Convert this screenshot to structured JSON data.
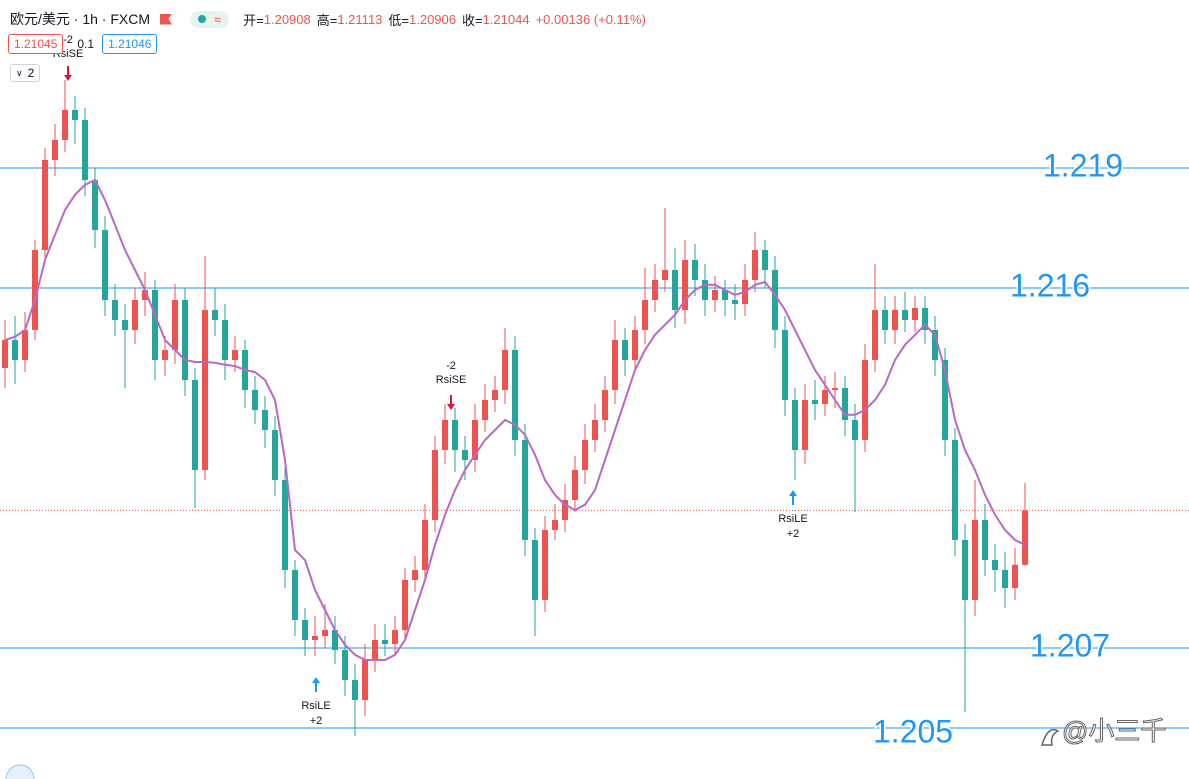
{
  "header": {
    "symbol": "欧元/美元 · 1h · FXCM",
    "toggle": "≈",
    "open_label": "开=",
    "open": "1.20908",
    "high_label": "高=",
    "high": "1.21113",
    "low_label": "低=",
    "low": "1.20906",
    "close_label": "收=",
    "close": "1.21044",
    "change": "+0.00136 (+0.11%)",
    "sell_price": "1.21045",
    "spread": "0.1",
    "buy_price": "1.21046",
    "indicator_count": "2"
  },
  "watermark": "@小三千",
  "chart_data": {
    "type": "candlestick",
    "ylim": [
      1.203725,
      1.2232
    ],
    "up_color": "#ef5350",
    "down_color": "#26a69a",
    "ohlc": [
      [
        1.214,
        1.2152,
        1.2135,
        1.2147
      ],
      [
        1.2147,
        1.2153,
        1.2136,
        1.2142
      ],
      [
        1.2142,
        1.2154,
        1.2139,
        1.21495
      ],
      [
        1.21495,
        1.2172,
        1.2147,
        1.21695
      ],
      [
        1.21695,
        1.2195,
        1.2166,
        1.2192
      ],
      [
        1.2192,
        1.2201,
        1.2188,
        1.2197
      ],
      [
        1.2197,
        1.2212,
        1.2194,
        1.22045
      ],
      [
        1.22045,
        1.2208,
        1.2196,
        1.2202
      ],
      [
        1.2202,
        1.2205,
        1.2183,
        1.2187
      ],
      [
        1.2187,
        1.219,
        1.217,
        1.21745
      ],
      [
        1.21745,
        1.2178,
        1.2153,
        1.2157
      ],
      [
        1.2157,
        1.2161,
        1.2148,
        1.2152
      ],
      [
        1.2152,
        1.2156,
        1.2135,
        1.21495
      ],
      [
        1.21495,
        1.216,
        1.2146,
        1.2157
      ],
      [
        1.2157,
        1.2164,
        1.2153,
        1.21595
      ],
      [
        1.21595,
        1.2162,
        1.2137,
        1.2142
      ],
      [
        1.2142,
        1.2148,
        1.2138,
        1.21445
      ],
      [
        1.21445,
        1.2161,
        1.2141,
        1.2157
      ],
      [
        1.2157,
        1.216,
        1.2133,
        1.2137
      ],
      [
        1.2137,
        1.214,
        1.2105,
        1.21145
      ],
      [
        1.21145,
        1.2168,
        1.2112,
        1.21545
      ],
      [
        1.21545,
        1.216,
        1.2148,
        1.2152
      ],
      [
        1.2152,
        1.2156,
        1.2137,
        1.2142
      ],
      [
        1.2142,
        1.2148,
        1.2139,
        1.21445
      ],
      [
        1.21445,
        1.2147,
        1.213,
        1.21345
      ],
      [
        1.21345,
        1.2138,
        1.2126,
        1.21295
      ],
      [
        1.21295,
        1.2133,
        1.212,
        1.21245
      ],
      [
        1.21245,
        1.2128,
        1.2108,
        1.2112
      ],
      [
        1.2112,
        1.2115,
        1.2085,
        1.20895
      ],
      [
        1.20895,
        1.2092,
        1.2073,
        1.2077
      ],
      [
        1.2077,
        1.208,
        1.2068,
        1.2072
      ],
      [
        1.2072,
        1.2078,
        1.2068,
        1.2073
      ],
      [
        1.2073,
        1.2081,
        1.207,
        1.20745
      ],
      [
        1.20745,
        1.2078,
        1.2066,
        1.20695
      ],
      [
        1.20695,
        1.2073,
        1.2058,
        1.2062
      ],
      [
        1.2062,
        1.2066,
        1.2048,
        1.2057
      ],
      [
        1.2057,
        1.2071,
        1.2053,
        1.2067
      ],
      [
        1.2067,
        1.2076,
        1.2064,
        1.2072
      ],
      [
        1.2072,
        1.2076,
        1.2068,
        1.2071
      ],
      [
        1.2071,
        1.2078,
        1.2068,
        1.20745
      ],
      [
        1.20745,
        1.209,
        1.2072,
        1.2087
      ],
      [
        1.2087,
        1.2093,
        1.2084,
        1.20895
      ],
      [
        1.20895,
        1.2106,
        1.2087,
        1.2102
      ],
      [
        1.2102,
        1.2123,
        1.2099,
        1.21195
      ],
      [
        1.21195,
        1.2131,
        1.2116,
        1.2127
      ],
      [
        1.2127,
        1.213,
        1.2114,
        1.21195
      ],
      [
        1.21195,
        1.2123,
        1.2112,
        1.2117
      ],
      [
        1.2117,
        1.2131,
        1.2114,
        1.2127
      ],
      [
        1.2127,
        1.2136,
        1.2124,
        1.2132
      ],
      [
        1.2132,
        1.2138,
        1.2129,
        1.21345
      ],
      [
        1.21345,
        1.215,
        1.2131,
        1.21445
      ],
      [
        1.21445,
        1.2148,
        1.2118,
        1.2122
      ],
      [
        1.2122,
        1.2126,
        1.2093,
        1.2097
      ],
      [
        1.2097,
        1.21,
        1.2073,
        1.2082
      ],
      [
        1.2082,
        1.2103,
        1.2079,
        1.20995
      ],
      [
        1.20995,
        1.2106,
        1.2097,
        1.2102
      ],
      [
        1.2102,
        1.2111,
        1.2099,
        1.2107
      ],
      [
        1.2107,
        1.2118,
        1.2104,
        1.21145
      ],
      [
        1.21145,
        1.2126,
        1.2111,
        1.2122
      ],
      [
        1.2122,
        1.2131,
        1.2119,
        1.2127
      ],
      [
        1.2127,
        1.2138,
        1.2124,
        1.21345
      ],
      [
        1.21345,
        1.2152,
        1.2131,
        1.2147
      ],
      [
        1.2147,
        1.215,
        1.2138,
        1.2142
      ],
      [
        1.2142,
        1.2153,
        1.2139,
        1.21495
      ],
      [
        1.21495,
        1.2165,
        1.2146,
        1.2157
      ],
      [
        1.2157,
        1.2166,
        1.2154,
        1.2162
      ],
      [
        1.2162,
        1.218,
        1.2159,
        1.21645
      ],
      [
        1.21645,
        1.217,
        1.215,
        1.21545
      ],
      [
        1.21545,
        1.2172,
        1.2151,
        1.2167
      ],
      [
        1.2167,
        1.2171,
        1.2158,
        1.2162
      ],
      [
        1.2162,
        1.2166,
        1.2153,
        1.2157
      ],
      [
        1.2157,
        1.2163,
        1.2154,
        1.21595
      ],
      [
        1.21595,
        1.2162,
        1.2153,
        1.2157
      ],
      [
        1.2157,
        1.2161,
        1.2152,
        1.2156
      ],
      [
        1.2156,
        1.2166,
        1.2153,
        1.2162
      ],
      [
        1.2162,
        1.2174,
        1.2159,
        1.21695
      ],
      [
        1.21695,
        1.2172,
        1.216,
        1.21645
      ],
      [
        1.21645,
        1.2168,
        1.2145,
        1.21495
      ],
      [
        1.21495,
        1.2153,
        1.2128,
        1.2132
      ],
      [
        1.2132,
        1.2135,
        1.2112,
        1.21195
      ],
      [
        1.21195,
        1.2136,
        1.2116,
        1.2132
      ],
      [
        1.2132,
        1.2137,
        1.2127,
        1.2131
      ],
      [
        1.2131,
        1.2138,
        1.2128,
        1.21345
      ],
      [
        1.21345,
        1.2139,
        1.213,
        1.2135
      ],
      [
        1.2135,
        1.2138,
        1.2123,
        1.2127
      ],
      [
        1.2127,
        1.2131,
        1.2104,
        1.2122
      ],
      [
        1.2122,
        1.2146,
        1.2119,
        1.2142
      ],
      [
        1.2142,
        1.2166,
        1.2139,
        1.21545
      ],
      [
        1.21545,
        1.2158,
        1.2146,
        1.21495
      ],
      [
        1.21495,
        1.2158,
        1.2146,
        1.21545
      ],
      [
        1.21545,
        1.2159,
        1.2149,
        1.2152
      ],
      [
        1.2152,
        1.2158,
        1.2149,
        1.2155
      ],
      [
        1.2155,
        1.2158,
        1.2146,
        1.21495
      ],
      [
        1.21495,
        1.2153,
        1.2138,
        1.2142
      ],
      [
        1.2142,
        1.2145,
        1.2118,
        1.2122
      ],
      [
        1.2122,
        1.2125,
        1.2093,
        1.2097
      ],
      [
        1.2097,
        1.2101,
        1.2054,
        1.2082
      ],
      [
        1.2082,
        1.2112,
        1.2078,
        1.2102
      ],
      [
        1.2102,
        1.2106,
        1.2088,
        1.2092
      ],
      [
        1.2092,
        1.2096,
        1.2084,
        1.20895
      ],
      [
        1.20895,
        1.2094,
        1.208,
        1.2085
      ],
      [
        1.2085,
        1.2095,
        1.2082,
        1.20908
      ],
      [
        1.20908,
        1.21113,
        1.20906,
        1.21044
      ]
    ],
    "ma": {
      "color": "#ba68c8",
      "values": [
        1.2147,
        1.21478,
        1.21495,
        1.2157,
        1.2167,
        1.21733,
        1.21795,
        1.21833,
        1.21858,
        1.2187,
        1.2182,
        1.21758,
        1.21695,
        1.21645,
        1.21595,
        1.21533,
        1.2147,
        1.21445,
        1.2142,
        1.21415,
        1.21415,
        1.21413,
        1.21408,
        1.21405,
        1.21395,
        1.2139,
        1.2137,
        1.2132,
        1.2117,
        1.20945,
        1.2092,
        1.20845,
        1.20795,
        1.20745,
        1.20708,
        1.20683,
        1.2067,
        1.2067,
        1.2067,
        1.20683,
        1.2072,
        1.20795,
        1.2087,
        1.20958,
        1.21033,
        1.21095,
        1.21145,
        1.21183,
        1.2122,
        1.21245,
        1.2127,
        1.21258,
        1.21233,
        1.21183,
        1.2112,
        1.21083,
        1.21058,
        1.21045,
        1.21058,
        1.21095,
        1.2117,
        1.21245,
        1.2132,
        1.21395,
        1.21445,
        1.21483,
        1.21508,
        1.21533,
        1.2157,
        1.21595,
        1.21608,
        1.21608,
        1.21595,
        1.21583,
        1.2159,
        1.21608,
        1.21615,
        1.21583,
        1.21545,
        1.21495,
        1.21445,
        1.21395,
        1.21358,
        1.2132,
        1.21283,
        1.21283,
        1.21295,
        1.2132,
        1.21358,
        1.2142,
        1.21458,
        1.21483,
        1.21508,
        1.21483,
        1.21395,
        1.2127,
        1.21195,
        1.21145,
        1.21083,
        1.21033,
        1.20995,
        1.2097,
        1.20958
      ]
    },
    "levels": {
      "color": "#2196f3",
      "values": [
        1.219,
        1.216,
        1.207,
        1.205
      ]
    },
    "signals": [
      {
        "qty": "-2",
        "label": "RsiSE"
      },
      {
        "qty": "+2",
        "label": "RsiLE"
      },
      {
        "qty": "-2",
        "label": "RsiSE"
      },
      {
        "qty": "+2",
        "label": "RsiLE"
      }
    ]
  }
}
